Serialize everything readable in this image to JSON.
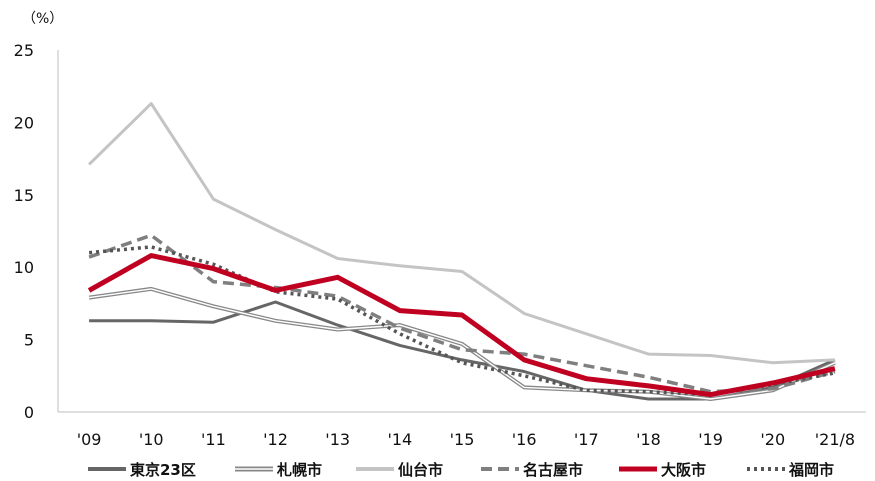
{
  "chart_data": {
    "type": "line",
    "y_unit_label": "（%）",
    "categories": [
      "'09",
      "'10",
      "'11",
      "'12",
      "'13",
      "'14",
      "'15",
      "'16",
      "'17",
      "'18",
      "'19",
      "'20",
      "'21/8"
    ],
    "ylim": [
      0,
      25
    ],
    "yticks": [
      "0",
      "5",
      "10",
      "15",
      "20",
      "25"
    ],
    "grid": false,
    "legend_position": "bottom",
    "series": [
      {
        "name": "東京23区",
        "style": "solid-thick",
        "color": "#666666",
        "values": [
          6.3,
          6.3,
          6.2,
          7.6,
          6.0,
          4.6,
          3.6,
          2.8,
          1.5,
          0.9,
          0.9,
          1.7,
          3.6
        ]
      },
      {
        "name": "札幌市",
        "style": "double",
        "color": "#888888",
        "values": [
          7.9,
          8.5,
          7.3,
          6.3,
          5.7,
          6.0,
          4.7,
          1.7,
          1.5,
          1.4,
          0.9,
          1.5,
          3.4
        ]
      },
      {
        "name": "仙台市",
        "style": "solid-light",
        "color": "#c4c4c4",
        "values": [
          17.1,
          21.3,
          14.7,
          12.6,
          10.6,
          10.1,
          9.7,
          6.8,
          5.4,
          4.0,
          3.9,
          3.4,
          3.6
        ]
      },
      {
        "name": "名古屋市",
        "style": "dashed",
        "color": "#7f7f7f",
        "values": [
          10.7,
          12.2,
          9.0,
          8.6,
          8.0,
          5.8,
          4.3,
          4.0,
          3.2,
          2.4,
          1.4,
          1.6,
          2.8
        ]
      },
      {
        "name": "大阪市",
        "style": "solid-bold",
        "color": "#c00020",
        "values": [
          8.4,
          10.8,
          9.9,
          8.4,
          9.3,
          7.0,
          6.7,
          3.6,
          2.3,
          1.8,
          1.2,
          2.0,
          3.0
        ]
      },
      {
        "name": "福岡市",
        "style": "dotted",
        "color": "#555555",
        "values": [
          11.0,
          11.4,
          10.2,
          8.3,
          7.8,
          5.4,
          3.4,
          2.5,
          1.5,
          1.4,
          1.2,
          1.9,
          2.7
        ]
      }
    ]
  }
}
